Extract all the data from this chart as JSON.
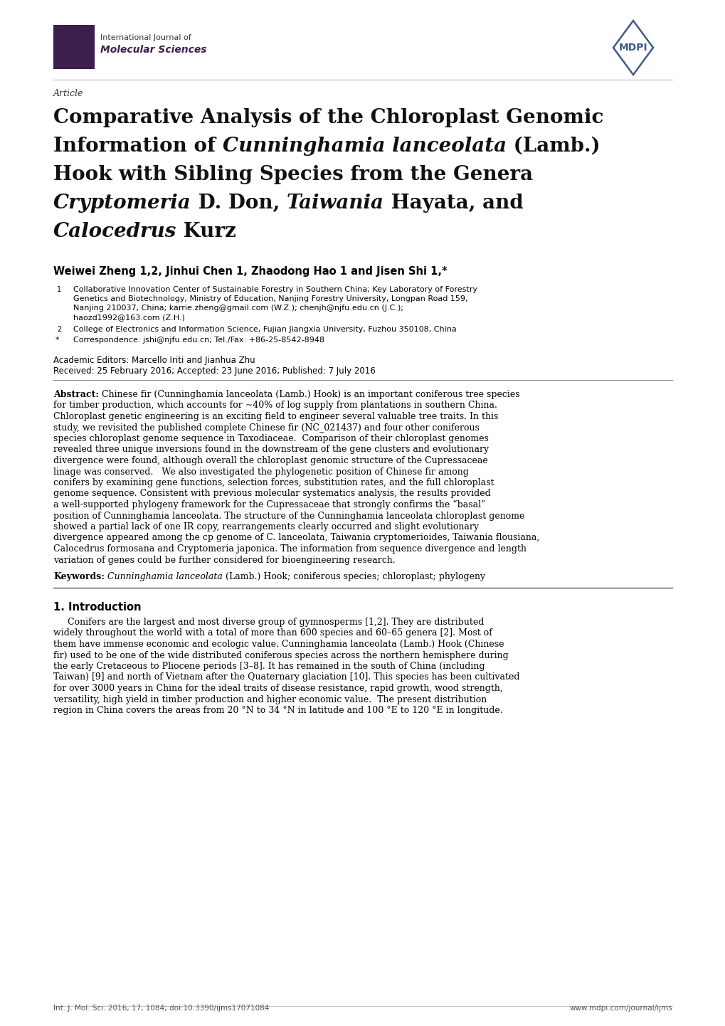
{
  "background_color": "#ffffff",
  "page_width": 10.2,
  "page_height": 14.42,
  "journal_name_line1": "International Journal of",
  "journal_name_line2": "Molecular Sciences",
  "article_label": "Article",
  "title_line1": "Comparative Analysis of the Chloroplast Genomic",
  "title_line2_pre": "Information of ",
  "title_line2_italic": "Cunninghamia lanceolata",
  "title_line2_post": " (Lamb.)",
  "title_line3": "Hook with Sibling Species from the Genera",
  "title_line4_italic1": "Cryptomeria",
  "title_line4_mid": " D. Don, ",
  "title_line4_italic2": "Taiwania",
  "title_line4_post": " Hayata, and",
  "title_line5_italic": "Calocedrus",
  "title_line5_post": " Kurz",
  "authors_line": "Weiwei Zheng 1,2, Jinhui Chen 1, Zhaodong Hao 1 and Jisen Shi 1,*",
  "affil1_line1": "Collaborative Innovation Center of Sustainable Forestry in Southern China; Key Laboratory of Forestry",
  "affil1_line2": "Genetics and Biotechnology, Ministry of Education, Nanjing Forestry University, Longpan Road 159,",
  "affil1_line3": "Nanjing 210037, China; karrie.zheng@gmail.com (W.Z.); chenjh@njfu.edu.cn (J.C.);",
  "affil1_line4": "haozd1992@163.com (Z.H.)",
  "affil2": "College of Electronics and Information Science, Fujian Jiangxia University, Fuzhou 350108, China",
  "affil_star": "Correspondence: jshi@njfu.edu.cn; Tel./Fax: +86-25-8542-8948",
  "academic_editors": "Academic Editors: Marcello Iriti and Jianhua Zhu",
  "received": "Received: 25 February 2016; Accepted: 23 June 2016; Published: 7 July 2016",
  "abstract_lines": [
    "Abstract: Chinese fir (Cunninghamia lanceolata (Lamb.) Hook) is an important coniferous tree species",
    "for timber production, which accounts for ~40% of log supply from plantations in southern China.",
    "Chloroplast genetic engineering is an exciting field to engineer several valuable tree traits. In this",
    "study, we revisited the published complete Chinese fir (NC_021437) and four other coniferous",
    "species chloroplast genome sequence in Taxodiaceae.  Comparison of their chloroplast genomes",
    "revealed three unique inversions found in the downstream of the gene clusters and evolutionary",
    "divergence were found, although overall the chloroplast genomic structure of the Cupressaceae",
    "linage was conserved.   We also investigated the phylogenetic position of Chinese fir among",
    "conifers by examining gene functions, selection forces, substitution rates, and the full chloroplast",
    "genome sequence. Consistent with previous molecular systematics analysis, the results provided",
    "a well-supported phylogeny framework for the Cupressaceae that strongly confirms the “basal”",
    "position of Cunninghamia lanceolata. The structure of the Cunninghamia lanceolata chloroplast genome",
    "showed a partial lack of one IR copy, rearrangements clearly occurred and slight evolutionary",
    "divergence appeared among the cp genome of C. lanceolata, Taiwania cryptomerioides, Taiwania flousiana,",
    "Calocedrus formosana and Cryptomeria japonica. The information from sequence divergence and length",
    "variation of genes could be further considered for bioengineering research."
  ],
  "keywords_line": "Keywords: Cunninghamia lanceolata (Lamb.) Hook; coniferous species; chloroplast; phylogeny",
  "section1_title": "1. Introduction",
  "section1_lines": [
    "     Conifers are the largest and most diverse group of gymnosperms [1,2]. They are distributed",
    "widely throughout the world with a total of more than 600 species and 60–65 genera [2]. Most of",
    "them have immense economic and ecologic value. Cunninghamia lanceolata (Lamb.) Hook (Chinese",
    "fir) used to be one of the wide distributed coniferous species across the northern hemisphere during",
    "the early Cretaceous to Pliocene periods [3–8]. It has remained in the south of China (including",
    "Taiwan) [9] and north of Vietnam after the Quaternary glaciation [10]. This species has been cultivated",
    "for over 3000 years in China for the ideal traits of disease resistance, rapid growth, wood strength,",
    "versatility, high yield in timber production and higher economic value.  The present distribution",
    "region in China covers the areas from 20 °N to 34 °N in latitude and 100 °E to 120 °E in longitude."
  ],
  "footer_left": "Int. J. Mol. Sci. 2016, 17, 1084; doi:10.3390/ijms17071084",
  "footer_right": "www.mdpi.com/journal/ijms",
  "logo_color": "#3d1f4e",
  "mdpi_color": "#3d5a8a",
  "text_color": "#000000",
  "gray_color": "#555555"
}
